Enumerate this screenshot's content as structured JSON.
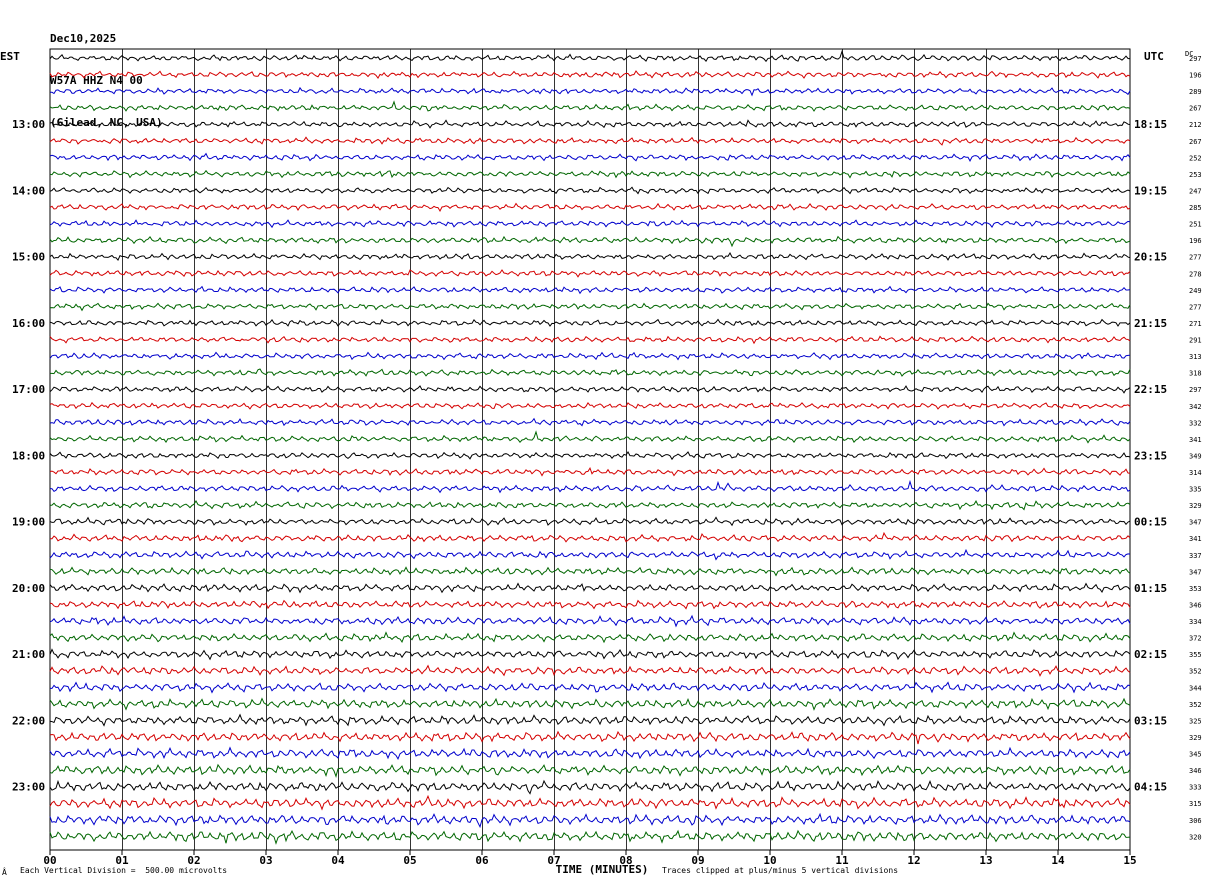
{
  "header": {
    "date": "Dec10,2025",
    "station": "W57A HHZ N4 00",
    "location": "(Gilead, NC, USA)"
  },
  "left_timezone": "EST",
  "right_timezone": "UTC",
  "dc_label": "DC",
  "footer": {
    "scale": "Each Vertical Division =  500.00 microvolts",
    "clip": "Traces clipped at plus/minus 5 vertical divisions",
    "corner_mark": "Â"
  },
  "chart_data": {
    "type": "helicorder",
    "xlabel": "TIME (MINUTES)",
    "x_ticks": [
      "00",
      "01",
      "02",
      "03",
      "04",
      "05",
      "06",
      "07",
      "08",
      "09",
      "10",
      "11",
      "12",
      "13",
      "14",
      "15"
    ],
    "xlim": [
      0,
      15
    ],
    "trace_colors": [
      "#000000",
      "#d40000",
      "#0000cc",
      "#006600"
    ],
    "left_hour_labels": [
      "13:00",
      "14:00",
      "15:00",
      "16:00",
      "17:00",
      "18:00",
      "19:00",
      "20:00",
      "21:00",
      "22:00",
      "23:00"
    ],
    "right_hour_labels": [
      "18:15",
      "19:15",
      "20:15",
      "21:15",
      "22:15",
      "23:15",
      "00:15",
      "01:15",
      "02:15",
      "03:15",
      "04:15"
    ],
    "dc_offsets": [
      297,
      196,
      289,
      267,
      212,
      267,
      252,
      253,
      247,
      285,
      251,
      196,
      277,
      278,
      249,
      277,
      271,
      291,
      313,
      318,
      297,
      342,
      332,
      341,
      349,
      314,
      335,
      329,
      347,
      341,
      337,
      347,
      353,
      346,
      334,
      372,
      355,
      352,
      344,
      352,
      325,
      329,
      345,
      346,
      333,
      315,
      306,
      320
    ],
    "trace_count": 48,
    "traces_before_first_label": 4,
    "traces_per_hour": 4
  }
}
